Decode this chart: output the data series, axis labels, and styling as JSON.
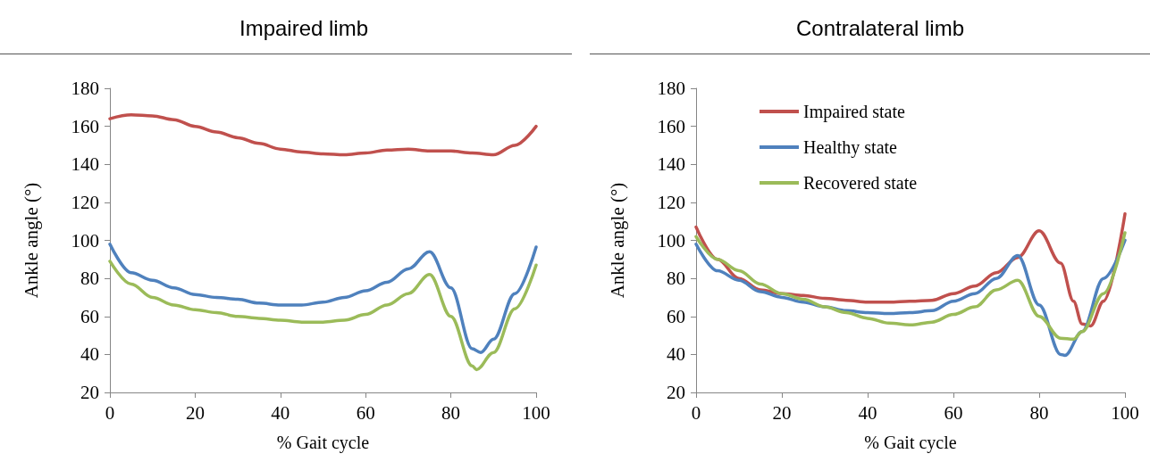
{
  "chart_data": [
    {
      "type": "line",
      "title": "Impaired limb",
      "xlabel": "% Gait cycle",
      "ylabel": "Ankle angle (°)",
      "xlim": [
        0,
        100
      ],
      "xticks": [
        0,
        20,
        40,
        60,
        80,
        100
      ],
      "ylim": [
        20,
        180
      ],
      "yticks": [
        20,
        40,
        60,
        80,
        100,
        120,
        140,
        160,
        180
      ],
      "grid": false,
      "legend": false,
      "marker": "none",
      "line_style": "solid",
      "series": [
        {
          "color": "#c0504d",
          "x": [
            0,
            5,
            10,
            15,
            20,
            25,
            30,
            35,
            40,
            45,
            50,
            55,
            60,
            65,
            70,
            75,
            80,
            85,
            90,
            95,
            100
          ],
          "values": [
            164,
            166,
            165.5,
            163.5,
            160,
            157,
            154,
            151,
            148,
            146.5,
            145.5,
            145,
            146,
            147.5,
            148,
            147,
            147,
            146,
            145,
            150,
            160
          ]
        },
        {
          "color": "#4f81bd",
          "x": [
            0,
            5,
            10,
            15,
            20,
            25,
            30,
            35,
            40,
            45,
            50,
            55,
            60,
            65,
            70,
            75,
            80,
            85,
            87,
            90,
            95,
            100
          ],
          "values": [
            98,
            83,
            79,
            75,
            71.5,
            70,
            69,
            67,
            66,
            66,
            67.5,
            70,
            73.5,
            78,
            85,
            94,
            75,
            43,
            41,
            48,
            72,
            96.5
          ]
        },
        {
          "color": "#9bbb59",
          "x": [
            0,
            5,
            10,
            15,
            20,
            25,
            30,
            35,
            40,
            45,
            50,
            55,
            60,
            65,
            70,
            75,
            80,
            85,
            86,
            90,
            95,
            100
          ],
          "values": [
            89,
            77,
            70,
            66,
            63.5,
            62,
            60,
            59,
            58,
            57,
            57,
            58,
            61,
            66,
            72,
            82,
            60,
            34,
            32,
            41,
            64,
            87
          ]
        }
      ]
    },
    {
      "type": "line",
      "title": "Contralateral limb",
      "xlabel": "% Gait cycle",
      "ylabel": "Ankle angle (°)",
      "xlim": [
        0,
        100
      ],
      "xticks": [
        0,
        20,
        40,
        60,
        80,
        100
      ],
      "ylim": [
        20,
        180
      ],
      "yticks": [
        20,
        40,
        60,
        80,
        100,
        120,
        140,
        160,
        180
      ],
      "grid": false,
      "legend": "top left",
      "marker": "none",
      "line_style": "solid",
      "series": [
        {
          "name": "Impaired state",
          "color": "#c0504d",
          "x": [
            0,
            5,
            10,
            15,
            20,
            25,
            30,
            35,
            40,
            45,
            50,
            55,
            60,
            65,
            70,
            75,
            80,
            85,
            88,
            90,
            92,
            95,
            100
          ],
          "values": [
            107,
            90,
            80,
            74,
            72,
            71,
            69.5,
            68.5,
            67.5,
            67.5,
            68,
            68.5,
            72,
            76,
            83,
            91,
            105,
            88,
            68,
            56,
            55,
            68,
            114
          ]
        },
        {
          "name": "Healthy state",
          "color": "#4f81bd",
          "x": [
            0,
            5,
            10,
            15,
            20,
            25,
            30,
            35,
            40,
            45,
            50,
            55,
            60,
            65,
            70,
            75,
            80,
            85,
            86,
            90,
            95,
            100
          ],
          "values": [
            98,
            84,
            79,
            73,
            70,
            67.5,
            65,
            63,
            62,
            61.5,
            62,
            63,
            68,
            72,
            80,
            92,
            66,
            40,
            39.5,
            52,
            80,
            100
          ]
        },
        {
          "name": "Recovered state",
          "color": "#9bbb59",
          "x": [
            0,
            5,
            10,
            15,
            20,
            25,
            30,
            35,
            40,
            45,
            50,
            55,
            60,
            65,
            70,
            75,
            80,
            85,
            88,
            90,
            95,
            100
          ],
          "values": [
            102,
            90,
            84,
            77,
            72,
            69,
            65,
            62,
            59,
            56.5,
            55.5,
            57,
            61,
            65,
            74,
            79,
            60,
            48.5,
            48,
            52,
            72,
            104
          ]
        }
      ]
    }
  ]
}
